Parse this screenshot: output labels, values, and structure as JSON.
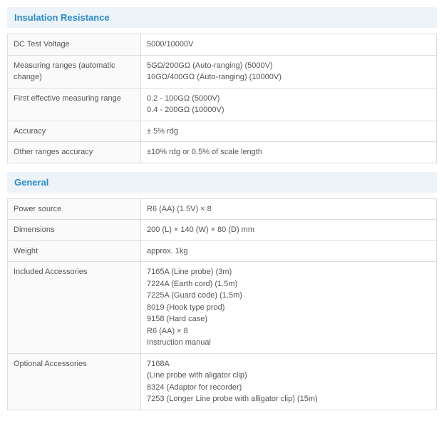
{
  "sections": [
    {
      "title": "Insulation Resistance",
      "rows": [
        {
          "label": "DC Test Voltage",
          "lines": [
            "5000/10000V"
          ]
        },
        {
          "label": "Measuring ranges (automatic change)",
          "lines": [
            "5GΩ/200GΩ (Auto-ranging) (5000V)",
            "10GΩ/400GΩ (Auto-ranging) (10000V)"
          ]
        },
        {
          "label": "First effective measuring range",
          "lines": [
            "0.2 - 100GΩ (5000V)",
            "0.4 - 200GΩ (10000V)"
          ]
        },
        {
          "label": "Accuracy",
          "lines": [
            "± 5% rdg"
          ]
        },
        {
          "label": "Other ranges accuracy",
          "lines": [
            "±10% rdg or 0.5% of scale length"
          ]
        }
      ]
    },
    {
      "title": "General",
      "rows": [
        {
          "label": "Power source",
          "lines": [
            "R6 (AA) (1.5V) × 8"
          ]
        },
        {
          "label": "Dimensions",
          "lines": [
            "200 (L) × 140 (W) × 80 (D) mm"
          ]
        },
        {
          "label": "Weight",
          "lines": [
            "approx. 1kg"
          ]
        },
        {
          "label": "Included Accessories",
          "lines": [
            "7165A (Line probe) (3m)",
            "7224A (Earth cord) (1.5m)",
            "7225A (Guard code) (1.5m)",
            "8019 (Hook type prod)",
            "9158 (Hard case)",
            "R6 (AA) × 8",
            "Instruction manual"
          ]
        },
        {
          "label": "Optional Accessories",
          "lines": [
            "7168A",
            "(Line probe with aligator clip)",
            "8324 (Adaptor for recorder)",
            "7253 (Longer Line probe with alligator clip) (15m)"
          ]
        }
      ]
    }
  ]
}
